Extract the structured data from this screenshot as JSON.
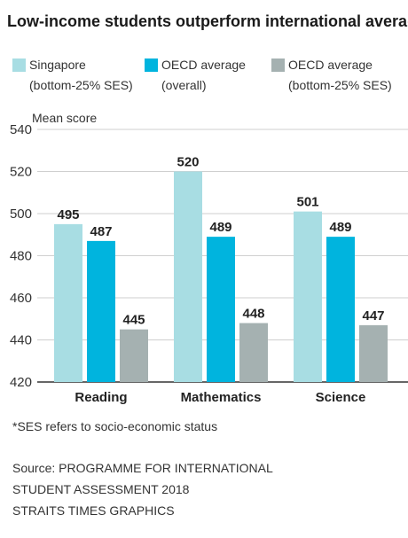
{
  "title": "Low-income students outperform international average",
  "legend": [
    {
      "line1": "Singapore",
      "line2": "(bottom-25% SES)",
      "color": "#a8dde3"
    },
    {
      "line1": "OECD average",
      "line2": "(overall)",
      "color": "#00b4de"
    },
    {
      "line1": "OECD average",
      "line2": "(bottom-25% SES)",
      "color": "#a5b1b1"
    }
  ],
  "footnote": "*SES refers to socio-economic status",
  "source": {
    "line1": "Source: PROGRAMME FOR INTERNATIONAL",
    "line2": "STUDENT ASSESSMENT 2018",
    "line3": "STRAITS TIMES GRAPHICS"
  },
  "chart_data": {
    "type": "bar",
    "ylabel": "Mean score",
    "ylim": [
      420,
      540
    ],
    "yticks": [
      420,
      440,
      460,
      480,
      500,
      520,
      540
    ],
    "grid": true,
    "categories": [
      "Reading",
      "Mathematics",
      "Science"
    ],
    "series": [
      {
        "name": "Singapore (bottom-25% SES)",
        "values": [
          495,
          520,
          501
        ],
        "color": "#a8dde3"
      },
      {
        "name": "OECD average (overall)",
        "values": [
          487,
          489,
          489
        ],
        "color": "#00b4de"
      },
      {
        "name": "OECD average (bottom-25% SES)",
        "values": [
          445,
          448,
          447
        ],
        "color": "#a5b1b1"
      }
    ]
  }
}
